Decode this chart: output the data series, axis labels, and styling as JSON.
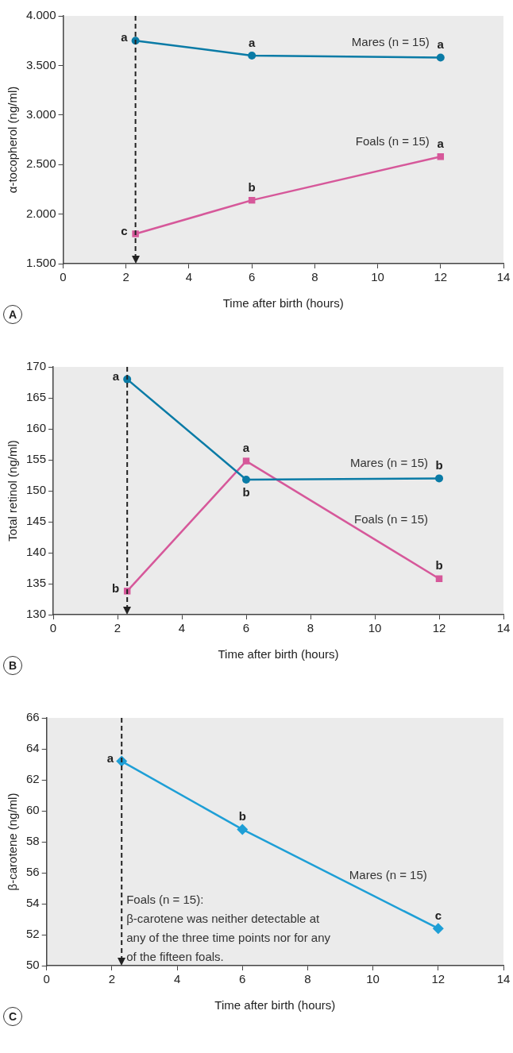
{
  "chart_data": [
    {
      "type": "line",
      "xlabel": "Time after birth (hours)",
      "ylabel": "α-tocopherol (ng/ml)",
      "x": [
        2.3,
        6,
        12
      ],
      "xlim": [
        0,
        14
      ],
      "xticks": [
        0,
        2,
        4,
        6,
        8,
        10,
        12,
        14
      ],
      "ylim": [
        1500,
        4000
      ],
      "yticks": [
        {
          "value": 1500,
          "label": "1.500"
        },
        {
          "value": 2000,
          "label": "2.000"
        },
        {
          "value": 2500,
          "label": "2.500"
        },
        {
          "value": 3000,
          "label": "3.000"
        },
        {
          "value": 3500,
          "label": "3.500"
        },
        {
          "value": 4000,
          "label": "4.000"
        }
      ],
      "grid": false,
      "legend": false,
      "line_style": "solid",
      "series": [
        {
          "name": "Mares (n = 15)",
          "color": "#0a7ba6",
          "marker": "circle",
          "values": [
            3750,
            3600,
            3580
          ]
        },
        {
          "name": "Foals (n = 15)",
          "color": "#d6589a",
          "marker": "square",
          "values": [
            1800,
            2140,
            2580
          ]
        }
      ],
      "ref_lines": [
        {
          "axis": "x",
          "value": 2.3,
          "color": "#222222",
          "line_style": "dashed"
        }
      ],
      "annotations": [
        "A",
        {
          "text": "a",
          "x": 2.3,
          "y": 3750
        },
        {
          "text": "a",
          "x": 6,
          "y": 3600
        },
        {
          "text": "a",
          "x": 12,
          "y": 3580
        },
        {
          "text": "c",
          "x": 2.3,
          "y": 1800
        },
        {
          "text": "b",
          "x": 6,
          "y": 2140
        },
        {
          "text": "a",
          "x": 12,
          "y": 2580
        }
      ]
    },
    {
      "type": "line",
      "xlabel": "Time after birth (hours)",
      "ylabel": "Total retinol (ng/ml)",
      "x": [
        2.3,
        6,
        12
      ],
      "xlim": [
        0,
        14
      ],
      "xticks": [
        0,
        2,
        4,
        6,
        8,
        10,
        12,
        14
      ],
      "ylim": [
        130,
        170
      ],
      "yticks": [
        130,
        135,
        140,
        145,
        150,
        155,
        160,
        165,
        170
      ],
      "grid": false,
      "legend": false,
      "line_style": "solid",
      "series": [
        {
          "name": "Mares (n = 15)",
          "color": "#0a7ba6",
          "marker": "circle",
          "values": [
            168,
            151.8,
            152
          ]
        },
        {
          "name": "Foals (n = 15)",
          "color": "#d6589a",
          "marker": "square",
          "values": [
            133.8,
            154.8,
            135.8
          ]
        }
      ],
      "ref_lines": [
        {
          "axis": "x",
          "value": 2.3,
          "color": "#222222",
          "line_style": "dashed"
        }
      ],
      "annotations": [
        "B",
        {
          "text": "a",
          "x": 2.3,
          "y": 168
        },
        {
          "text": "b",
          "x": 6,
          "y": 151.8
        },
        {
          "text": "b",
          "x": 12,
          "y": 152
        },
        {
          "text": "b",
          "x": 2.3,
          "y": 133.8
        },
        {
          "text": "a",
          "x": 6,
          "y": 154.8
        },
        {
          "text": "b",
          "x": 12,
          "y": 135.8
        }
      ]
    },
    {
      "type": "line",
      "xlabel": "Time after birth (hours)",
      "ylabel": "β-carotene (ng/ml)",
      "x": [
        2.3,
        6,
        12
      ],
      "xlim": [
        0,
        14
      ],
      "xticks": [
        0,
        2,
        4,
        6,
        8,
        10,
        12,
        14
      ],
      "ylim": [
        50,
        66
      ],
      "yticks": [
        50,
        52,
        54,
        56,
        58,
        60,
        62,
        64,
        66
      ],
      "grid": false,
      "legend": false,
      "line_style": "solid",
      "series": [
        {
          "name": "Mares (n = 15)",
          "color": "#1e9fd6",
          "marker": "diamond",
          "values": [
            63.2,
            58.8,
            52.4
          ]
        }
      ],
      "ref_lines": [
        {
          "axis": "x",
          "value": 2.3,
          "color": "#222222",
          "line_style": "dashed"
        }
      ],
      "annotations": [
        "C",
        {
          "text": "a",
          "x": 2.3,
          "y": 63.2
        },
        {
          "text": "b",
          "x": 6,
          "y": 58.8
        },
        {
          "text": "c",
          "x": 12,
          "y": 52.4
        },
        "Foals (n = 15):\nβ-carotene was neither detectable at\nany of the three time points nor for any\nof the fifteen foals."
      ]
    }
  ]
}
